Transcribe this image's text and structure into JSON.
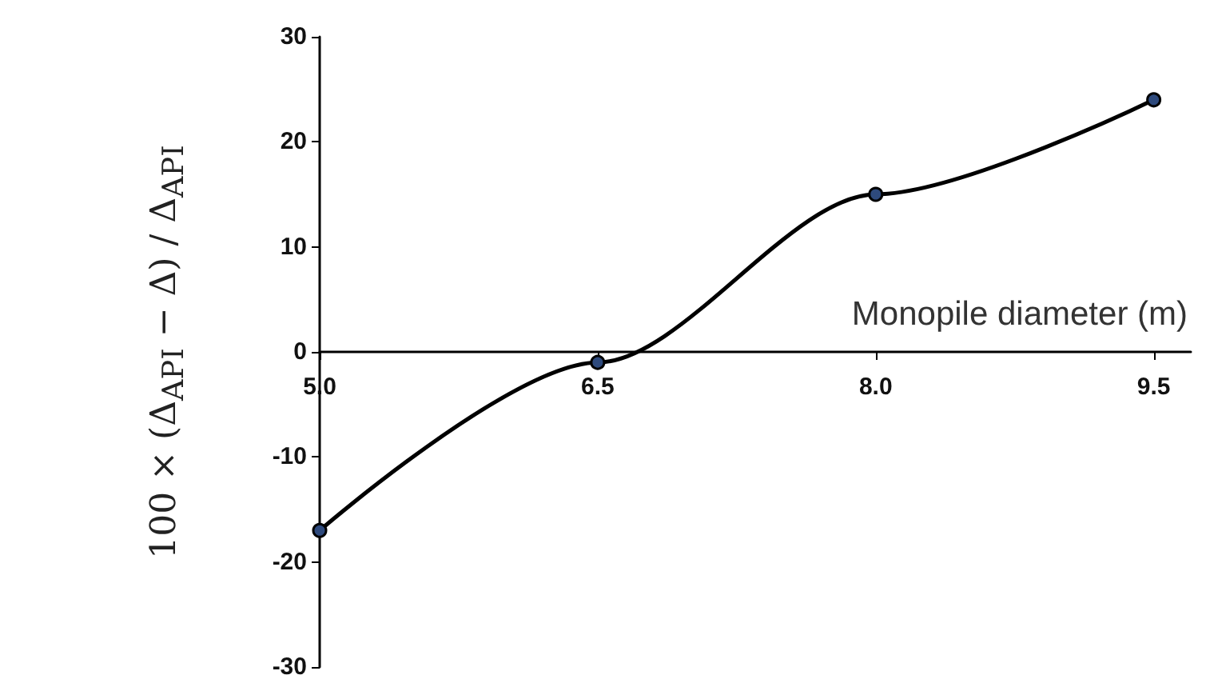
{
  "chart_data": {
    "type": "line",
    "xlabel": "Monopile diameter (m)",
    "ylabel": "100 × (Δ$_{API}$ − Δ) / Δ$_{API}$",
    "x": [
      5,
      6.5,
      8,
      9.5
    ],
    "series": [
      {
        "color": "#000000",
        "values": [
          -17,
          -1,
          15,
          24
        ]
      }
    ],
    "xlim": [
      5,
      9.7
    ],
    "xticks": [
      {
        "value": 5,
        "label": "5.0"
      },
      {
        "value": 6.5,
        "label": "6.5"
      },
      {
        "value": 8,
        "label": "8.0"
      },
      {
        "value": 9.5,
        "label": "9.5"
      }
    ],
    "ylim": [
      -30,
      30
    ],
    "yticks": [
      -30,
      -20,
      -10,
      0,
      10,
      20,
      30
    ],
    "marker": "circle",
    "line_style": "solid"
  }
}
